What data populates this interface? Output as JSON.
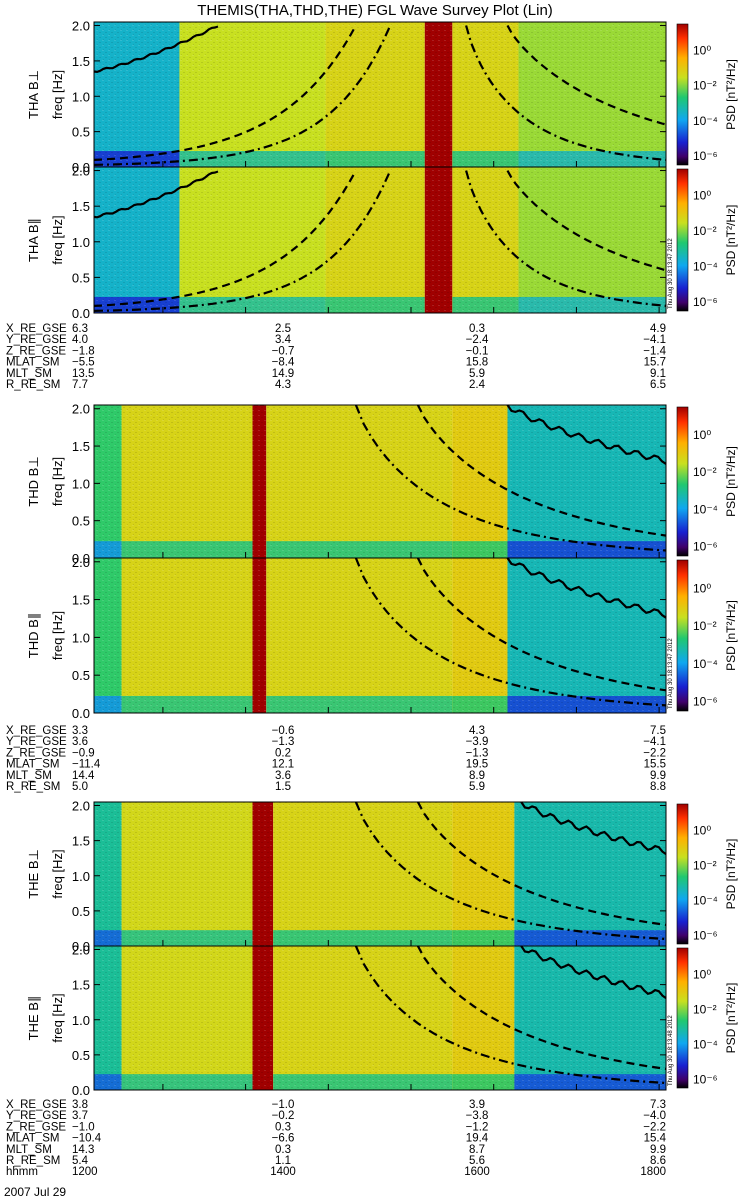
{
  "title": "THEMIS(THA,THD,THE) FGL Wave Survey Plot (Lin)",
  "date_label": "2007 Jul 29",
  "colorbar": {
    "label": "PSD [nT²/Hz]",
    "ticks": [
      "10⁰",
      "10⁻²",
      "10⁻⁴",
      "10⁻⁶"
    ],
    "tick_exponents": [
      0,
      -2,
      -4,
      -6
    ]
  },
  "stamps": [
    "Thu Aug 30 18:13:47 2012",
    "Thu Aug 30 18:13:47 2012",
    "Thu Aug 30 18:13:48 2012"
  ],
  "panel_axis": {
    "ylabel": "freq [Hz]",
    "ticks": [
      "0.0",
      "0.5",
      "1.0",
      "1.5",
      "2.0"
    ],
    "ylim": [
      0,
      2.05
    ]
  },
  "panels": [
    {
      "probe": "THA",
      "label": "THA B⊥"
    },
    {
      "probe": "THA",
      "label": "THA B∥"
    },
    {
      "probe": "THD",
      "label": "THD B⊥"
    },
    {
      "probe": "THD",
      "label": "THD B∥"
    },
    {
      "probe": "THE",
      "label": "THE B⊥"
    },
    {
      "probe": "THE",
      "label": "THE B∥"
    }
  ],
  "ephemeris": [
    {
      "probe": "THA",
      "rows": [
        {
          "label": "X_RE_GSE",
          "values": [
            "6.3",
            "2.5",
            "0.3",
            "4.9"
          ]
        },
        {
          "label": "Y_RE_GSE",
          "values": [
            "4.0",
            "3.4",
            "−2.4",
            "−4.1"
          ]
        },
        {
          "label": "Z_RE_GSE",
          "values": [
            "−1.8",
            "−0.7",
            "−0.1",
            "−1.4"
          ]
        },
        {
          "label": "MLAT_SM",
          "values": [
            "−5.5",
            "−8.4",
            "15.8",
            "15.7"
          ]
        },
        {
          "label": "MLT_SM",
          "values": [
            "13.5",
            "14.9",
            "5.9",
            "9.1"
          ]
        },
        {
          "label": "R_RE_SM",
          "values": [
            "7.7",
            "4.3",
            "2.4",
            "6.5"
          ]
        }
      ]
    },
    {
      "probe": "THD",
      "rows": [
        {
          "label": "X_RE_GSE",
          "values": [
            "3.3",
            "−0.6",
            "4.3",
            "7.5"
          ]
        },
        {
          "label": "Y_RE_GSE",
          "values": [
            "3.6",
            "−1.3",
            "−3.9",
            "−4.1"
          ]
        },
        {
          "label": "Z_RE_GSE",
          "values": [
            "−0.9",
            "0.2",
            "−1.3",
            "−2.2"
          ]
        },
        {
          "label": "MLAT_SM",
          "values": [
            "−11.4",
            "12.1",
            "19.5",
            "15.5"
          ]
        },
        {
          "label": "MLT_SM",
          "values": [
            "14.4",
            "3.6",
            "8.9",
            "9.9"
          ]
        },
        {
          "label": "R_RE_SM",
          "values": [
            "5.0",
            "1.5",
            "5.9",
            "8.8"
          ]
        }
      ]
    },
    {
      "probe": "THE",
      "rows": [
        {
          "label": "X_RE_GSE",
          "values": [
            "3.8",
            "−1.0",
            "3.9",
            "7.3"
          ]
        },
        {
          "label": "Y_RE_GSE",
          "values": [
            "3.7",
            "−0.2",
            "−3.8",
            "−4.0"
          ]
        },
        {
          "label": "Z_RE_GSE",
          "values": [
            "−1.0",
            "0.3",
            "−1.2",
            "−2.2"
          ]
        },
        {
          "label": "MLAT_SM",
          "values": [
            "−10.4",
            "−6.6",
            "19.4",
            "15.4"
          ]
        },
        {
          "label": "MLT_SM",
          "values": [
            "14.3",
            "0.3",
            "8.7",
            "9.9"
          ]
        },
        {
          "label": "R_RE_SM",
          "values": [
            "5.4",
            "1.1",
            "5.6",
            "8.6"
          ]
        },
        {
          "label": "hhmm",
          "values": [
            "1200",
            "1400",
            "1600",
            "1800"
          ]
        }
      ]
    }
  ],
  "chart_data": {
    "type": "heatmap",
    "title": "THEMIS(THA,THD,THE) FGL Wave Survey Plot (Lin)",
    "xlabel": "hhmm",
    "ylabel": "freq [Hz]",
    "xlim_hhmm": [
      "1110",
      "1805"
    ],
    "ylim": [
      0,
      2.05
    ],
    "x_ticks": [
      "1200",
      "1400",
      "1600",
      "1800"
    ],
    "color_scale": {
      "label": "PSD [nT²/Hz]",
      "log10_min": -6.5,
      "log10_max": 1.5
    },
    "series": [
      {
        "name": "THA",
        "segments": [
          {
            "from": "1110",
            "to": "1212",
            "log_psd": -3.5
          },
          {
            "from": "1212",
            "to": "1358",
            "log_psd": -1.5
          },
          {
            "from": "1358",
            "to": "1510",
            "log_psd": -1.2
          },
          {
            "from": "1510",
            "to": "1530",
            "log_psd": 1.5
          },
          {
            "from": "1530",
            "to": "1618",
            "log_psd": -1.2
          },
          {
            "from": "1618",
            "to": "1805",
            "log_psd": -1.8
          }
        ],
        "lines": {
          "solid": [
            [
              1110,
              1.35
            ],
            [
              1240,
              2.0
            ]
          ],
          "dashed_rising": [
            [
              1110,
              0.1
            ],
            [
              1420,
              2.0
            ]
          ],
          "dashdot_rising": [
            [
              1110,
              0.03
            ],
            [
              1445,
              2.0
            ]
          ],
          "dashed_falling": [
            [
              1610,
              2.0
            ],
            [
              1805,
              0.6
            ]
          ],
          "dashdot_falling": [
            [
              1540,
              2.0
            ],
            [
              1805,
              0.1
            ]
          ]
        }
      },
      {
        "name": "THD",
        "segments": [
          {
            "from": "1110",
            "to": "1130",
            "log_psd": -2.5
          },
          {
            "from": "1130",
            "to": "1305",
            "log_psd": -1.2
          },
          {
            "from": "1305",
            "to": "1315",
            "log_psd": 1.5
          },
          {
            "from": "1315",
            "to": "1530",
            "log_psd": -1.2
          },
          {
            "from": "1530",
            "to": "1610",
            "log_psd": -1.0
          },
          {
            "from": "1610",
            "to": "1805",
            "log_psd": -3.3
          }
        ],
        "lines": {
          "solid_falling": [
            [
              1610,
              2.05
            ],
            [
              1805,
              1.3
            ]
          ],
          "dashdot_falling": [
            [
              1420,
              2.05
            ],
            [
              1805,
              0.1
            ]
          ],
          "dashed_falling": [
            [
              1505,
              2.05
            ],
            [
              1805,
              0.3
            ]
          ]
        }
      },
      {
        "name": "THE",
        "segments": [
          {
            "from": "1110",
            "to": "1130",
            "log_psd": -3.0
          },
          {
            "from": "1130",
            "to": "1305",
            "log_psd": -1.3
          },
          {
            "from": "1305",
            "to": "1320",
            "log_psd": 1.5
          },
          {
            "from": "1320",
            "to": "1530",
            "log_psd": -1.2
          },
          {
            "from": "1530",
            "to": "1615",
            "log_psd": -1.0
          },
          {
            "from": "1615",
            "to": "1805",
            "log_psd": -3.2
          }
        ],
        "lines": {
          "solid_falling": [
            [
              1620,
              2.05
            ],
            [
              1805,
              1.35
            ]
          ],
          "dashdot_falling": [
            [
              1420,
              2.05
            ],
            [
              1805,
              0.1
            ]
          ],
          "dashed_falling": [
            [
              1505,
              2.05
            ],
            [
              1805,
              0.3
            ]
          ]
        }
      }
    ]
  }
}
